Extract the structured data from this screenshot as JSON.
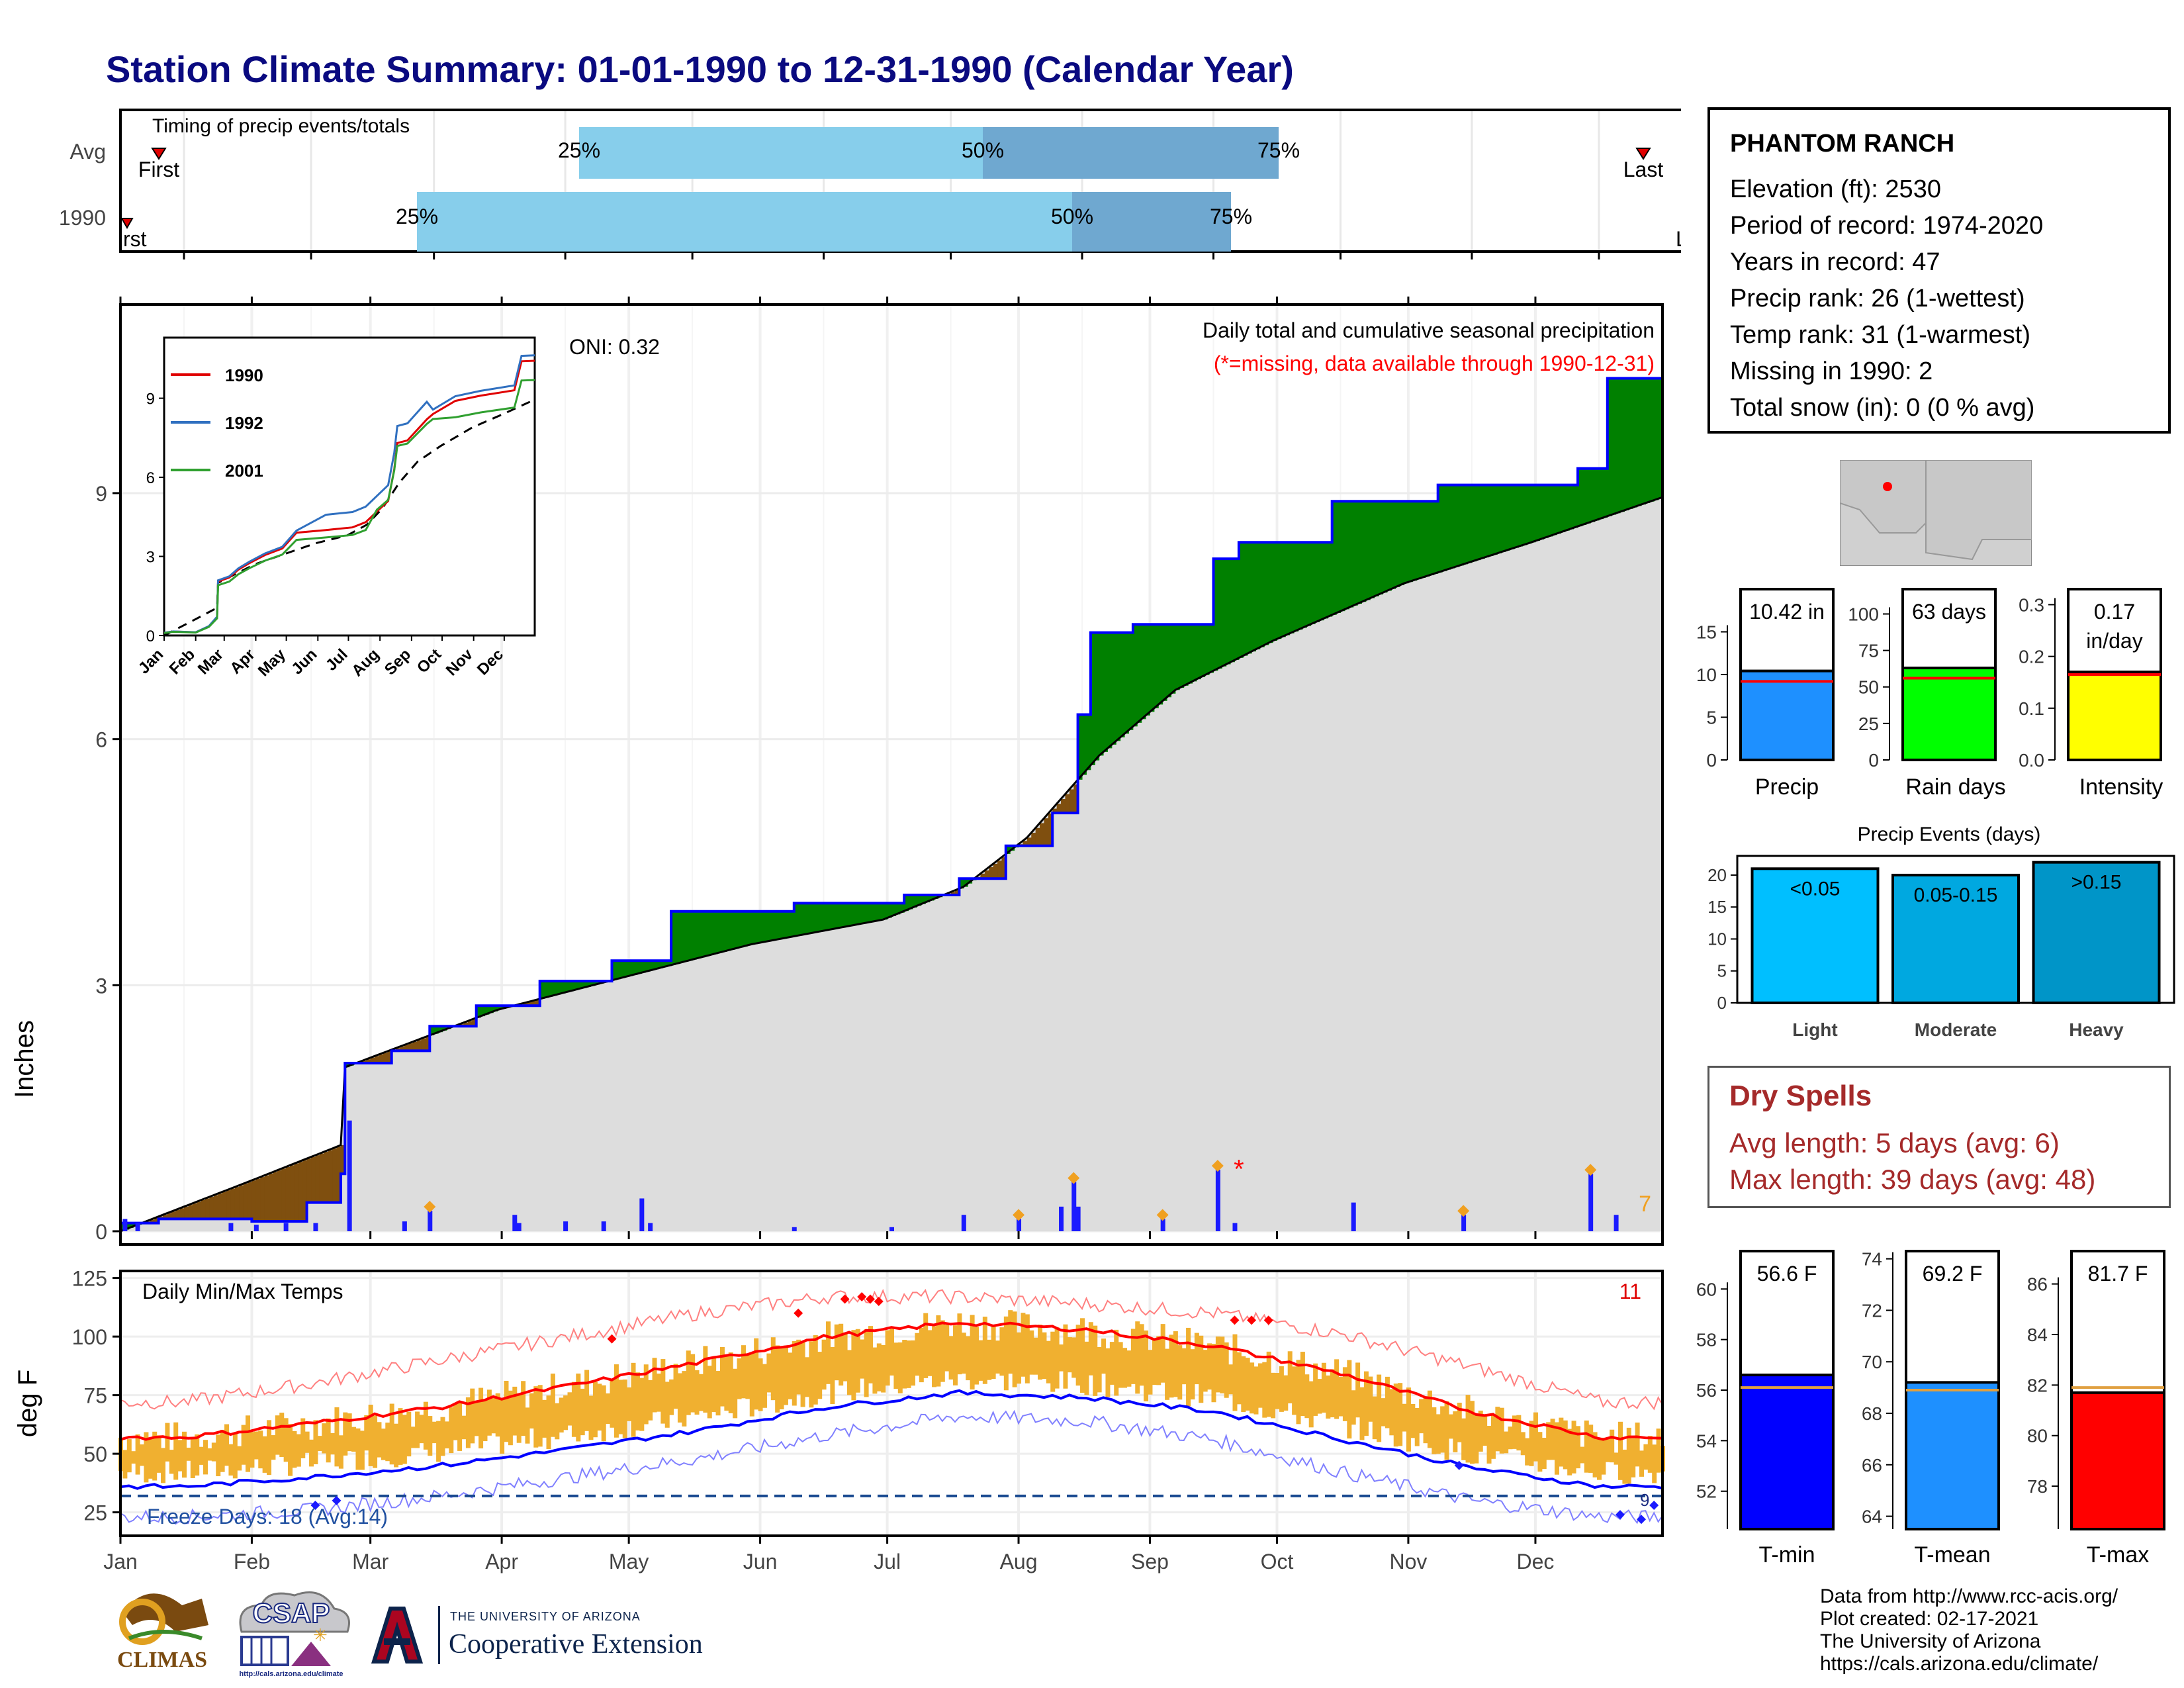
{
  "page_title": "Station Climate Summary: 01-01-1990 to 12-31-1990 (Calendar Year)",
  "station": {
    "name": "PHANTOM RANCH",
    "lines": [
      "Elevation (ft): 2530",
      "Period of record: 1974-2020",
      "Years in record: 47",
      "Precip rank: 26 (1-wettest)",
      "Temp rank: 31 (1-warmest)",
      "Missing in 1990: 2",
      "Total snow (in): 0 (0 % avg)"
    ]
  },
  "timing_panel": {
    "title": "Timing of precip events/totals",
    "rows": [
      "Avg",
      "1990"
    ],
    "labels": {
      "first": "First",
      "last": "Last",
      "p25": "25%",
      "p50": "50%",
      "p75": "75%",
      "first_clipped": "rst",
      "last_clipped": "La"
    }
  },
  "precip_panel": {
    "caption": "Daily total and cumulative seasonal precipitation",
    "missing_note": "(*=missing, data available through 1990-12-31)",
    "oni": "ONI: 0.32",
    "ylabel": "Inches",
    "count_label": "7",
    "inset_legend": [
      "1990",
      "1992",
      "2001"
    ]
  },
  "temp_panel": {
    "title": "Daily Min/Max Temps",
    "ylabel": "deg F",
    "count_label": "11",
    "freeze": "Freeze Days: 18 (Avg:14)",
    "freeze_count": "9"
  },
  "months": [
    "Jan",
    "Feb",
    "Mar",
    "Apr",
    "May",
    "Jun",
    "Jul",
    "Aug",
    "Sep",
    "Oct",
    "Nov",
    "Dec"
  ],
  "inset_months": [
    "Jan",
    "Feb",
    "Mar",
    "Apr",
    "May",
    "Jun",
    "Jul",
    "Aug",
    "Sep",
    "Oct",
    "Nov",
    "Dec"
  ],
  "summary_bars": {
    "precip": {
      "label": "Precip",
      "value_text": "10.42 in"
    },
    "raindays": {
      "label": "Rain days",
      "value_text": "63 days"
    },
    "intensity": {
      "label": "Intensity",
      "value_text": "0.17",
      "value_text2": "in/day"
    }
  },
  "events": {
    "title": "Precip Events (days)",
    "categories": [
      "Light",
      "Moderate",
      "Heavy"
    ],
    "bar_labels": [
      "<0.05",
      "0.05-0.15",
      ">0.15"
    ]
  },
  "dry_spells": {
    "title": "Dry Spells",
    "avg": "Avg length: 5 days (avg: 6)",
    "max": "Max length: 39 days (avg: 48)"
  },
  "temp_bars": {
    "tmin": {
      "label": "T-min",
      "value_text": "56.6 F"
    },
    "tmean": {
      "label": "T-mean",
      "value_text": "69.2 F"
    },
    "tmax": {
      "label": "T-max",
      "value_text": "81.7 F"
    }
  },
  "credits": [
    "Data from http://www.rcc-acis.org/",
    "Plot created: 02-17-2021",
    "The University of Arizona",
    "https://cals.arizona.edu/climate/"
  ],
  "logos": {
    "climas": "CLIMAS",
    "csap": "CSAP",
    "csap_url": "http://cals.arizona.edu/climate",
    "ua_small": "THE UNIVERSITY OF ARIZONA",
    "ua_big": "Cooperative Extension"
  },
  "colors": {
    "title": "#0a0a80",
    "green": "#008000",
    "brown": "#7f4f0f",
    "gray_fill": "#dddddd",
    "blue": "#0000ff",
    "red": "#ff0000",
    "orange": "#f0b030",
    "lightblue": "#87ceeb",
    "midblue": "#6fa8d0",
    "dry": "#a52a2a"
  },
  "chart_data": [
    {
      "type": "area",
      "name": "cumulative_precip",
      "ylabel": "Inches",
      "xlabel": "",
      "ylim": [
        0,
        11.3
      ],
      "x_ticks": [
        "Jan",
        "Feb",
        "Mar",
        "Apr",
        "May",
        "Jun",
        "Jul",
        "Aug",
        "Sep",
        "Oct",
        "Nov",
        "Dec"
      ],
      "y_ticks": [
        0,
        3,
        6,
        9
      ],
      "cumulative_1990": [
        {
          "day": 1,
          "in": 0.1
        },
        {
          "day": 10,
          "in": 0.15
        },
        {
          "day": 32,
          "in": 0.12
        },
        {
          "day": 45,
          "in": 0.35
        },
        {
          "day": 53,
          "in": 0.7
        },
        {
          "day": 54,
          "in": 2.05
        },
        {
          "day": 65,
          "in": 2.2
        },
        {
          "day": 74,
          "in": 2.5
        },
        {
          "day": 85,
          "in": 2.75
        },
        {
          "day": 100,
          "in": 3.05
        },
        {
          "day": 117,
          "in": 3.3
        },
        {
          "day": 131,
          "in": 3.9
        },
        {
          "day": 160,
          "in": 4.0
        },
        {
          "day": 186,
          "in": 4.1
        },
        {
          "day": 199,
          "in": 4.3
        },
        {
          "day": 210,
          "in": 4.7
        },
        {
          "day": 221,
          "in": 5.1
        },
        {
          "day": 227,
          "in": 6.3
        },
        {
          "day": 230,
          "in": 7.3
        },
        {
          "day": 240,
          "in": 7.4
        },
        {
          "day": 259,
          "in": 8.2
        },
        {
          "day": 265,
          "in": 8.4
        },
        {
          "day": 287,
          "in": 8.9
        },
        {
          "day": 312,
          "in": 9.1
        },
        {
          "day": 345,
          "in": 9.3
        },
        {
          "day": 352,
          "in": 10.4
        },
        {
          "day": 365,
          "in": 10.42
        }
      ],
      "cumulative_avg": [
        {
          "day": 1,
          "in": 0.0
        },
        {
          "day": 31,
          "in": 0.6
        },
        {
          "day": 53,
          "in": 1.05
        },
        {
          "day": 54,
          "in": 2.0
        },
        {
          "day": 90,
          "in": 2.7
        },
        {
          "day": 120,
          "in": 3.1
        },
        {
          "day": 150,
          "in": 3.5
        },
        {
          "day": 181,
          "in": 3.8
        },
        {
          "day": 200,
          "in": 4.2
        },
        {
          "day": 215,
          "in": 4.8
        },
        {
          "day": 232,
          "in": 5.8
        },
        {
          "day": 250,
          "in": 6.6
        },
        {
          "day": 273,
          "in": 7.2
        },
        {
          "day": 304,
          "in": 7.9
        },
        {
          "day": 334,
          "in": 8.4
        },
        {
          "day": 365,
          "in": 8.95
        }
      ],
      "daily_1990": [
        {
          "day": 2,
          "in": 0.15
        },
        {
          "day": 5,
          "in": 0.1
        },
        {
          "day": 27,
          "in": 0.1
        },
        {
          "day": 33,
          "in": 0.08
        },
        {
          "day": 40,
          "in": 0.1
        },
        {
          "day": 47,
          "in": 0.1
        },
        {
          "day": 55,
          "in": 1.35
        },
        {
          "day": 68,
          "in": 0.12
        },
        {
          "day": 74,
          "in": 0.25
        },
        {
          "day": 94,
          "in": 0.2
        },
        {
          "day": 95,
          "in": 0.1
        },
        {
          "day": 106,
          "in": 0.12
        },
        {
          "day": 115,
          "in": 0.12
        },
        {
          "day": 124,
          "in": 0.4
        },
        {
          "day": 126,
          "in": 0.1
        },
        {
          "day": 160,
          "in": 0.05
        },
        {
          "day": 183,
          "in": 0.05
        },
        {
          "day": 200,
          "in": 0.2
        },
        {
          "day": 213,
          "in": 0.15
        },
        {
          "day": 223,
          "in": 0.3
        },
        {
          "day": 226,
          "in": 0.6
        },
        {
          "day": 227,
          "in": 0.3
        },
        {
          "day": 247,
          "in": 0.15
        },
        {
          "day": 260,
          "in": 0.75
        },
        {
          "day": 264,
          "in": 0.1
        },
        {
          "day": 292,
          "in": 0.35
        },
        {
          "day": 318,
          "in": 0.2
        },
        {
          "day": 348,
          "in": 0.7
        },
        {
          "day": 354,
          "in": 0.2
        }
      ],
      "missing_days": [
        265
      ]
    },
    {
      "type": "line",
      "name": "daily_temps",
      "ylabel": "deg F",
      "ylim": [
        15,
        128
      ],
      "y_ticks": [
        25,
        50,
        75,
        100,
        125
      ],
      "series": [
        {
          "name": "avg_max",
          "values_by_month": [
            57,
            63,
            70,
            79,
            89,
            100,
            106,
            103,
            96,
            84,
            68,
            57
          ]
        },
        {
          "name": "avg_min",
          "values_by_month": [
            36,
            40,
            45,
            52,
            60,
            70,
            76,
            74,
            68,
            56,
            44,
            36
          ]
        },
        {
          "name": "record_max",
          "values_by_month": [
            72,
            80,
            90,
            100,
            110,
            117,
            117,
            114,
            110,
            101,
            87,
            72
          ]
        },
        {
          "name": "record_min",
          "values_by_month": [
            23,
            26,
            32,
            40,
            48,
            58,
            66,
            64,
            56,
            42,
            30,
            23
          ]
        }
      ],
      "freeze_threshold": 32
    },
    {
      "type": "bar",
      "name": "precip_total",
      "categories": [
        "Precip"
      ],
      "values": [
        10.42
      ],
      "avg": 9.2,
      "ylim": [
        0,
        20
      ],
      "y_ticks": [
        0,
        5,
        10,
        15
      ]
    },
    {
      "type": "bar",
      "name": "rain_days",
      "categories": [
        "Rain days"
      ],
      "values": [
        63
      ],
      "avg": 56,
      "ylim": [
        0,
        117
      ],
      "y_ticks": [
        0,
        25,
        50,
        75,
        100
      ]
    },
    {
      "type": "bar",
      "name": "intensity",
      "categories": [
        "Intensity"
      ],
      "values": [
        0.17
      ],
      "avg": 0.165,
      "ylim": [
        0,
        0.33
      ],
      "y_ticks": [
        0.0,
        0.1,
        0.2,
        0.3
      ]
    },
    {
      "type": "bar",
      "name": "precip_events",
      "categories": [
        "Light",
        "Moderate",
        "Heavy"
      ],
      "values": [
        21,
        20,
        22
      ],
      "ylim": [
        0,
        23
      ],
      "y_ticks": [
        0,
        5,
        10,
        15,
        20
      ]
    },
    {
      "type": "bar",
      "name": "tmin",
      "categories": [
        "T-min"
      ],
      "values": [
        56.6
      ],
      "avg": 56.1,
      "ylim": [
        50.5,
        61.5
      ],
      "y_ticks": [
        52,
        54,
        56,
        58,
        60
      ]
    },
    {
      "type": "bar",
      "name": "tmean",
      "categories": [
        "T-mean"
      ],
      "values": [
        69.2
      ],
      "avg": 68.9,
      "ylim": [
        63.5,
        74.3
      ],
      "y_ticks": [
        64,
        66,
        68,
        70,
        72,
        74
      ]
    },
    {
      "type": "bar",
      "name": "tmax",
      "categories": [
        "T-max"
      ],
      "values": [
        81.7
      ],
      "avg": 81.9,
      "ylim": [
        76.3,
        87.3
      ],
      "y_ticks": [
        78,
        80,
        82,
        84,
        86
      ]
    }
  ]
}
